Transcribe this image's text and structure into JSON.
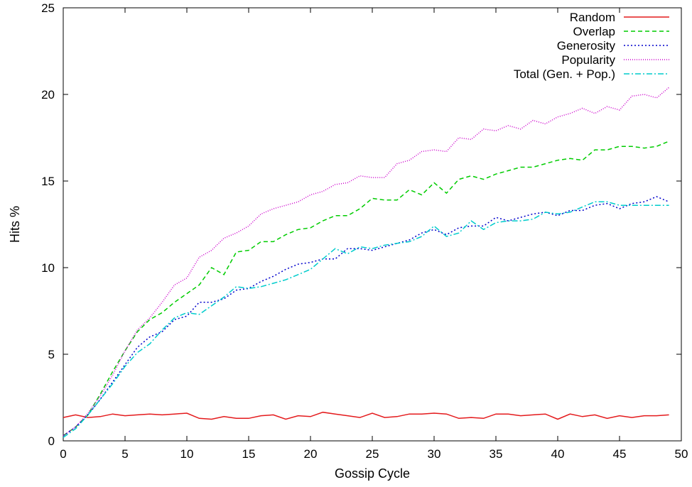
{
  "chart_data": {
    "type": "line",
    "title": "",
    "xlabel": "Gossip Cycle",
    "ylabel": "Hits %",
    "xlim": [
      0,
      50
    ],
    "ylim": [
      0,
      25
    ],
    "xticks": [
      0,
      5,
      10,
      15,
      20,
      25,
      30,
      35,
      40,
      45,
      50
    ],
    "yticks": [
      0,
      5,
      10,
      15,
      20,
      25
    ],
    "grid": false,
    "legend_position": "top-right",
    "x": [
      0,
      1,
      2,
      3,
      4,
      5,
      6,
      7,
      8,
      9,
      10,
      11,
      12,
      13,
      14,
      15,
      16,
      17,
      18,
      19,
      20,
      21,
      22,
      23,
      24,
      25,
      26,
      27,
      28,
      29,
      30,
      31,
      32,
      33,
      34,
      35,
      36,
      37,
      38,
      39,
      40,
      41,
      42,
      43,
      44,
      45,
      46,
      47,
      48,
      49
    ],
    "series": [
      {
        "name": "Random",
        "color": "#e41a1c",
        "dash": "solid",
        "values": [
          1.35,
          1.5,
          1.35,
          1.4,
          1.55,
          1.45,
          1.5,
          1.55,
          1.5,
          1.55,
          1.6,
          1.3,
          1.25,
          1.4,
          1.3,
          1.3,
          1.45,
          1.5,
          1.25,
          1.45,
          1.4,
          1.65,
          1.55,
          1.45,
          1.35,
          1.6,
          1.35,
          1.4,
          1.55,
          1.55,
          1.6,
          1.55,
          1.3,
          1.35,
          1.3,
          1.55,
          1.55,
          1.45,
          1.5,
          1.55,
          1.25,
          1.55,
          1.4,
          1.5,
          1.3,
          1.45,
          1.35,
          1.45,
          1.45,
          1.5
        ]
      },
      {
        "name": "Overlap",
        "color": "#00cc00",
        "dash": "dashed",
        "values": [
          0.3,
          0.8,
          1.5,
          2.7,
          4.0,
          5.2,
          6.3,
          7.0,
          7.4,
          8.0,
          8.5,
          9.0,
          10.0,
          9.6,
          10.9,
          11.0,
          11.5,
          11.5,
          11.9,
          12.2,
          12.3,
          12.7,
          13.0,
          13.0,
          13.4,
          14.0,
          13.9,
          13.9,
          14.5,
          14.2,
          14.9,
          14.3,
          15.1,
          15.3,
          15.1,
          15.4,
          15.6,
          15.8,
          15.8,
          16.0,
          16.2,
          16.3,
          16.2,
          16.8,
          16.8,
          17.0,
          17.0,
          16.9,
          17.0,
          17.3
        ]
      },
      {
        "name": "Generosity",
        "color": "#0000cc",
        "dash": "dotted",
        "values": [
          0.3,
          0.8,
          1.5,
          2.4,
          3.4,
          4.4,
          5.4,
          6.0,
          6.3,
          7.0,
          7.2,
          8.0,
          8.0,
          8.2,
          8.7,
          8.8,
          9.2,
          9.5,
          9.9,
          10.2,
          10.3,
          10.5,
          10.5,
          11.1,
          11.1,
          11.0,
          11.2,
          11.4,
          11.6,
          12.0,
          12.2,
          11.9,
          12.3,
          12.4,
          12.4,
          12.9,
          12.7,
          12.9,
          13.1,
          13.2,
          13.0,
          13.3,
          13.3,
          13.6,
          13.7,
          13.4,
          13.7,
          13.8,
          14.1,
          13.8
        ]
      },
      {
        "name": "Popularity",
        "color": "#cc00cc",
        "dash": "fine-dotted",
        "values": [
          0.3,
          0.8,
          1.6,
          2.6,
          3.8,
          5.2,
          6.4,
          7.1,
          8.0,
          9.0,
          9.4,
          10.6,
          11.0,
          11.7,
          12.0,
          12.4,
          13.1,
          13.4,
          13.6,
          13.8,
          14.2,
          14.4,
          14.8,
          14.9,
          15.3,
          15.2,
          15.2,
          16.0,
          16.2,
          16.7,
          16.8,
          16.7,
          17.5,
          17.4,
          18.0,
          17.9,
          18.2,
          18.0,
          18.5,
          18.3,
          18.7,
          18.9,
          19.2,
          18.9,
          19.3,
          19.1,
          19.9,
          20.0,
          19.8,
          20.4
        ]
      },
      {
        "name": "Total (Gen. + Pop.)",
        "color": "#00cccc",
        "dash": "dash-dot",
        "values": [
          0.2,
          0.7,
          1.5,
          2.4,
          3.3,
          4.3,
          5.1,
          5.6,
          6.4,
          7.1,
          7.4,
          7.3,
          7.8,
          8.3,
          8.9,
          8.8,
          8.9,
          9.1,
          9.3,
          9.6,
          9.9,
          10.5,
          11.1,
          10.8,
          11.2,
          11.1,
          11.3,
          11.4,
          11.5,
          11.8,
          12.4,
          11.8,
          12.0,
          12.7,
          12.2,
          12.6,
          12.7,
          12.7,
          12.8,
          13.2,
          13.1,
          13.2,
          13.5,
          13.8,
          13.8,
          13.6,
          13.6,
          13.6,
          13.6,
          13.6
        ]
      }
    ]
  }
}
